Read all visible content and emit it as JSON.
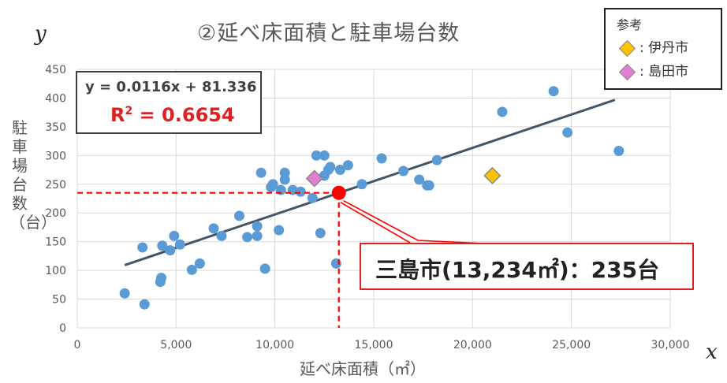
{
  "chart_data": {
    "type": "scatter",
    "title": "②延べ床面積と駐車場台数",
    "x_axis_letter": "x",
    "y_axis_letter": "y",
    "xlabel": "延べ床面積（㎡）",
    "ylabel": "駐車場台数（台）",
    "xlim": [
      0,
      30000
    ],
    "ylim": [
      0,
      450
    ],
    "xticks": [
      "0",
      "5,000",
      "10,000",
      "15,000",
      "20,000",
      "25,000",
      "30,000"
    ],
    "yticks": [
      "0",
      "50",
      "100",
      "150",
      "200",
      "250",
      "300",
      "350",
      "400",
      "450"
    ],
    "grid": true,
    "colors": {
      "points": "#5b9bd5",
      "trend": "#44546a",
      "highlight": "#ff0000",
      "itami": "#ffc000",
      "shimada": "#e47ed0"
    },
    "points": [
      [
        2400,
        60
      ],
      [
        3300,
        140
      ],
      [
        3400,
        41
      ],
      [
        4200,
        80
      ],
      [
        4250,
        87
      ],
      [
        4300,
        143
      ],
      [
        4700,
        135
      ],
      [
        4900,
        160
      ],
      [
        5200,
        145
      ],
      [
        5800,
        101
      ],
      [
        6200,
        112
      ],
      [
        6900,
        173
      ],
      [
        7300,
        160
      ],
      [
        8200,
        195
      ],
      [
        8600,
        158
      ],
      [
        9100,
        160
      ],
      [
        9100,
        177
      ],
      [
        9300,
        270
      ],
      [
        9500,
        103
      ],
      [
        9800,
        245
      ],
      [
        9900,
        250
      ],
      [
        10200,
        170
      ],
      [
        10300,
        240
      ],
      [
        10500,
        270
      ],
      [
        10500,
        258
      ],
      [
        10900,
        240
      ],
      [
        11300,
        237
      ],
      [
        11900,
        226
      ],
      [
        12100,
        300
      ],
      [
        12300,
        165
      ],
      [
        12500,
        265
      ],
      [
        12500,
        300
      ],
      [
        12700,
        275
      ],
      [
        12800,
        280
      ],
      [
        13100,
        112
      ],
      [
        13300,
        275
      ],
      [
        13700,
        283
      ],
      [
        14400,
        250
      ],
      [
        15400,
        295
      ],
      [
        16500,
        273
      ],
      [
        17300,
        258
      ],
      [
        17700,
        248
      ],
      [
        17800,
        248
      ],
      [
        18200,
        292
      ],
      [
        21500,
        376
      ],
      [
        24100,
        412
      ],
      [
        24800,
        340
      ],
      [
        27400,
        308
      ]
    ],
    "trendline": {
      "slope": 0.0116,
      "intercept": 81.336,
      "x_range": [
        2400,
        27200
      ]
    },
    "equation": "y = 0.0116x + 81.336",
    "r2_label": "R",
    "r2_sup": "2",
    "r2_value": " = 0.6654",
    "highlight": {
      "x": 13234,
      "y": 235,
      "label": "三島市(13,234㎡)：235台"
    },
    "reference_points": [
      {
        "name": "伊丹市",
        "x": 21000,
        "y": 265
      },
      {
        "name": "島田市",
        "x": 12000,
        "y": 260
      }
    ],
    "legend": {
      "title": "参考",
      "items": [
        ": 伊丹市",
        ": 島田市"
      ]
    }
  }
}
